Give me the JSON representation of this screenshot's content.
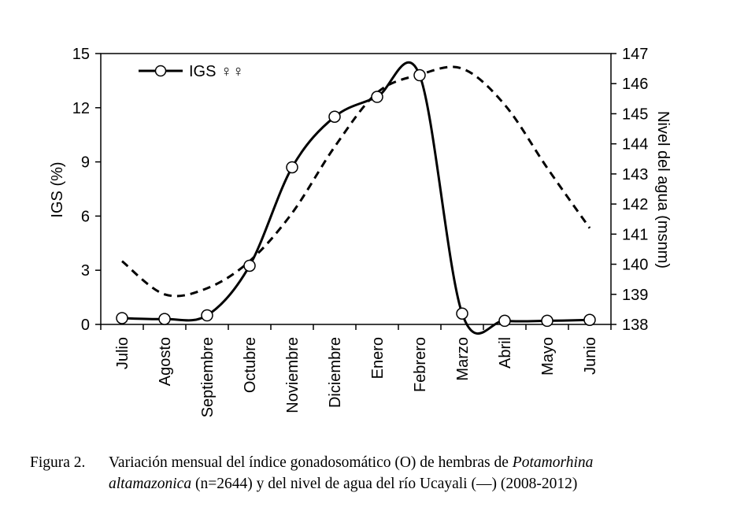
{
  "chart_data": {
    "type": "line",
    "categories": [
      "Julio",
      "Agosto",
      "Septiembre",
      "Octubre",
      "Noviembre",
      "Diciembre",
      "Enero",
      "Febrero",
      "Marzo",
      "Abril",
      "Mayo",
      "Junio"
    ],
    "series": [
      {
        "name": "IGS ♀♀",
        "axis": "left",
        "style": "solid-with-open-circles",
        "values": [
          0.35,
          0.3,
          0.5,
          3.25,
          8.7,
          11.5,
          12.6,
          13.8,
          0.6,
          0.2,
          0.2,
          0.25
        ]
      },
      {
        "name": "",
        "axis": "right",
        "style": "dashed",
        "values": [
          140.1,
          139.0,
          139.2,
          140.1,
          141.7,
          143.9,
          145.7,
          146.3,
          146.5,
          145.3,
          143.2,
          141.2
        ]
      }
    ],
    "ylabel": "IGS (%)",
    "ylabel_right": "Nivel del agua (msnm)",
    "ylim": [
      0,
      15
    ],
    "yticks": [
      "0",
      "3",
      "6",
      "9",
      "12",
      "15"
    ],
    "ylim_right": [
      138,
      147
    ],
    "yticks_right": [
      "138",
      "139",
      "140",
      "141",
      "142",
      "143",
      "144",
      "145",
      "146",
      "147"
    ],
    "legend": {
      "label": "IGS ♀♀",
      "placement": "top-left"
    },
    "grid": false,
    "colors": {
      "line": "#000000",
      "marker_fill": "#ffffff"
    }
  },
  "caption": {
    "label": "Figura 2.",
    "text_1": "Variación mensual del índice gonadosomático (O) de hembras de ",
    "species_1": "Potamorhina",
    "species_2": "altamazonica",
    "text_2": " (n=2644) y del nivel de agua del río Ucayali (—) (2008-2012)"
  }
}
